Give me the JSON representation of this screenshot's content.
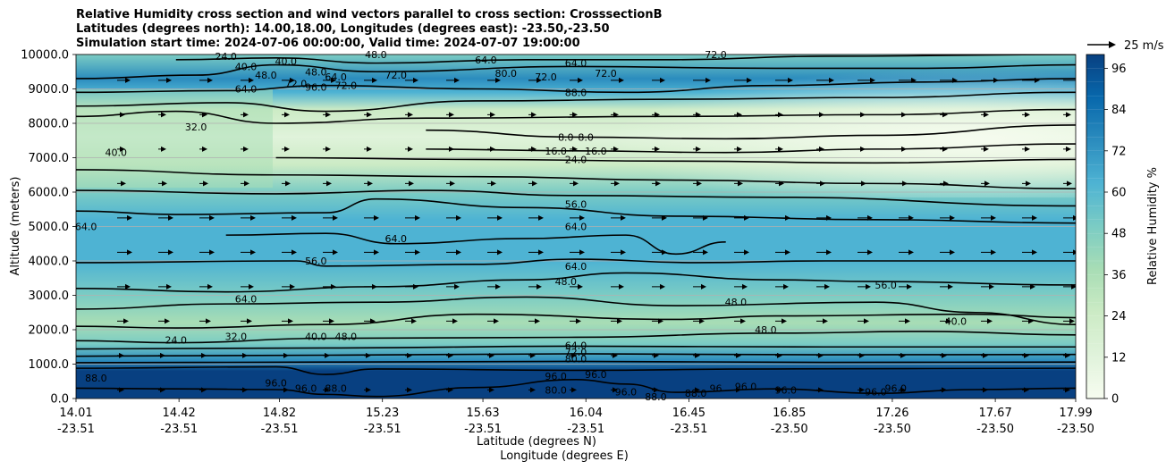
{
  "title_lines": [
    "Relative Humidity cross section and wind vectors parallel to cross section: CrosssectionB",
    "Latitudes (degrees north): 14.00,18.00, Longitudes (degrees east): -23.50,-23.50",
    "Simulation start time: 2024-07-06 00:00:00, Valid time: 2024-07-07 19:00:00"
  ],
  "colors": {
    "scale": [
      "#f7fcf0",
      "#e0f3db",
      "#ccebc5",
      "#a8ddb5",
      "#7bccc4",
      "#4eb3d3",
      "#2b8cbe",
      "#0868ac",
      "#084081"
    ],
    "contour": "#000000",
    "grid": "#b0b0b0"
  },
  "chart_data": {
    "type": "contour",
    "ylabel": "Altitude (meters)",
    "xlabel_lines": [
      "Latitude (degrees N)",
      "Longitude (degrees E)"
    ],
    "ylim": [
      0,
      10000
    ],
    "yticks": [
      "0.0",
      "1000.0",
      "2000.0",
      "3000.0",
      "4000.0",
      "5000.0",
      "6000.0",
      "7000.0",
      "8000.0",
      "9000.0",
      "10000.0"
    ],
    "x_ticks": [
      {
        "lat": "14.01",
        "lon": "-23.51"
      },
      {
        "lat": "14.42",
        "lon": "-23.51"
      },
      {
        "lat": "14.82",
        "lon": "-23.51"
      },
      {
        "lat": "15.23",
        "lon": "-23.51"
      },
      {
        "lat": "15.63",
        "lon": "-23.51"
      },
      {
        "lat": "16.04",
        "lon": "-23.51"
      },
      {
        "lat": "16.45",
        "lon": "-23.51"
      },
      {
        "lat": "16.85",
        "lon": "-23.50"
      },
      {
        "lat": "17.26",
        "lon": "-23.50"
      },
      {
        "lat": "17.67",
        "lon": "-23.50"
      },
      {
        "lat": "17.99",
        "lon": "-23.50"
      }
    ],
    "colorbar": {
      "label": "Relative Humidity %",
      "ticks": [
        "0",
        "12",
        "24",
        "36",
        "48",
        "60",
        "72",
        "84",
        "96"
      ],
      "range": [
        0,
        100
      ]
    },
    "quiver_key": "25 m/s",
    "grid": "horizontal",
    "contour_labels": [
      {
        "text": "24.0",
        "x": 0.15,
        "y": 9950
      },
      {
        "text": "40.0",
        "x": 0.17,
        "y": 9650
      },
      {
        "text": "40.0",
        "x": 0.21,
        "y": 9800
      },
      {
        "text": "48.0",
        "x": 0.19,
        "y": 9400
      },
      {
        "text": "64.0",
        "x": 0.17,
        "y": 9000
      },
      {
        "text": "48.0",
        "x": 0.24,
        "y": 9500
      },
      {
        "text": "72.0",
        "x": 0.22,
        "y": 9150
      },
      {
        "text": "96.0",
        "x": 0.24,
        "y": 9050
      },
      {
        "text": "64.0",
        "x": 0.26,
        "y": 9350
      },
      {
        "text": "72.0",
        "x": 0.27,
        "y": 9100
      },
      {
        "text": "72.0",
        "x": 0.32,
        "y": 9400
      },
      {
        "text": "48.0",
        "x": 0.3,
        "y": 10000
      },
      {
        "text": "64.0",
        "x": 0.41,
        "y": 9850
      },
      {
        "text": "80.0",
        "x": 0.43,
        "y": 9450
      },
      {
        "text": "72.0",
        "x": 0.47,
        "y": 9350
      },
      {
        "text": "64.0",
        "x": 0.5,
        "y": 9750
      },
      {
        "text": "72.0",
        "x": 0.53,
        "y": 9450
      },
      {
        "text": "88.0",
        "x": 0.5,
        "y": 8900
      },
      {
        "text": "72.0",
        "x": 0.64,
        "y": 10000
      },
      {
        "text": "32.0",
        "x": 0.12,
        "y": 7900
      },
      {
        "text": "40.0",
        "x": 0.04,
        "y": 7150
      },
      {
        "text": "8.0",
        "x": 0.49,
        "y": 7600
      },
      {
        "text": "8.0",
        "x": 0.51,
        "y": 7600
      },
      {
        "text": "16.0",
        "x": 0.48,
        "y": 7200
      },
      {
        "text": "16.0",
        "x": 0.52,
        "y": 7200
      },
      {
        "text": "24.0",
        "x": 0.5,
        "y": 6950
      },
      {
        "text": "56.0",
        "x": 0.5,
        "y": 5650
      },
      {
        "text": "64.0",
        "x": 0.01,
        "y": 5000
      },
      {
        "text": "64.0",
        "x": 0.32,
        "y": 4650
      },
      {
        "text": "64.0",
        "x": 0.5,
        "y": 5000
      },
      {
        "text": "56.0",
        "x": 0.24,
        "y": 4000
      },
      {
        "text": "64.0",
        "x": 0.5,
        "y": 3850
      },
      {
        "text": "48.0",
        "x": 0.49,
        "y": 3400
      },
      {
        "text": "64.0",
        "x": 0.17,
        "y": 2900
      },
      {
        "text": "48.0",
        "x": 0.66,
        "y": 2800
      },
      {
        "text": "56.0",
        "x": 0.81,
        "y": 3300
      },
      {
        "text": "48.0",
        "x": 0.69,
        "y": 2000
      },
      {
        "text": "40.0",
        "x": 0.88,
        "y": 2250
      },
      {
        "text": "24.0",
        "x": 0.1,
        "y": 1700
      },
      {
        "text": "32.0",
        "x": 0.16,
        "y": 1800
      },
      {
        "text": "40.0",
        "x": 0.24,
        "y": 1800
      },
      {
        "text": "48.0",
        "x": 0.27,
        "y": 1800
      },
      {
        "text": "64.0",
        "x": 0.5,
        "y": 1550
      },
      {
        "text": "72.0",
        "x": 0.5,
        "y": 1350
      },
      {
        "text": "80.0",
        "x": 0.5,
        "y": 1150
      },
      {
        "text": "88.0",
        "x": 0.02,
        "y": 600
      },
      {
        "text": "96.0",
        "x": 0.2,
        "y": 450
      },
      {
        "text": "96.0",
        "x": 0.23,
        "y": 300
      },
      {
        "text": "88.0",
        "x": 0.26,
        "y": 300
      },
      {
        "text": "96.0",
        "x": 0.48,
        "y": 650
      },
      {
        "text": "96.0",
        "x": 0.52,
        "y": 700
      },
      {
        "text": "80.0",
        "x": 0.48,
        "y": 250
      },
      {
        "text": "96.0",
        "x": 0.55,
        "y": 200
      },
      {
        "text": "88.0",
        "x": 0.58,
        "y": 50
      },
      {
        "text": "88.0",
        "x": 0.62,
        "y": 150
      },
      {
        "text": "96",
        "x": 0.64,
        "y": 300
      },
      {
        "text": "96.0",
        "x": 0.67,
        "y": 350
      },
      {
        "text": "96.0",
        "x": 0.71,
        "y": 250
      },
      {
        "text": "96.0",
        "x": 0.8,
        "y": 200
      },
      {
        "text": "96.0",
        "x": 0.82,
        "y": 300
      }
    ],
    "contour_lines": [
      {
        "level": 96,
        "points": [
          [
            0,
            300
          ],
          [
            0.1,
            280
          ],
          [
            0.2,
            260
          ],
          [
            0.25,
            120
          ],
          [
            0.3,
            60
          ],
          [
            0.4,
            320
          ],
          [
            0.5,
            550
          ],
          [
            0.55,
            420
          ],
          [
            0.6,
            180
          ],
          [
            0.7,
            280
          ],
          [
            0.8,
            150
          ],
          [
            0.9,
            260
          ],
          [
            1,
            300
          ]
        ]
      },
      {
        "level": 88,
        "points": [
          [
            0,
            880
          ],
          [
            0.2,
            920
          ],
          [
            0.25,
            700
          ],
          [
            0.3,
            860
          ],
          [
            0.5,
            820
          ],
          [
            0.7,
            860
          ],
          [
            1,
            880
          ]
        ]
      },
      {
        "level": 80,
        "points": [
          [
            0,
            1040
          ],
          [
            0.25,
            1060
          ],
          [
            0.5,
            1080
          ],
          [
            0.75,
            1050
          ],
          [
            1,
            1060
          ]
        ]
      },
      {
        "level": 72,
        "points": [
          [
            0,
            1230
          ],
          [
            0.25,
            1260
          ],
          [
            0.5,
            1300
          ],
          [
            0.75,
            1270
          ],
          [
            1,
            1280
          ]
        ]
      },
      {
        "level": 64,
        "points": [
          [
            0,
            1440
          ],
          [
            0.25,
            1470
          ],
          [
            0.5,
            1520
          ],
          [
            0.75,
            1500
          ],
          [
            1,
            1500
          ]
        ]
      },
      {
        "level": 56,
        "points": [
          [
            0,
            1680
          ],
          [
            0.1,
            1620
          ],
          [
            0.25,
            1750
          ],
          [
            0.5,
            1780
          ],
          [
            0.7,
            1900
          ],
          [
            0.85,
            1950
          ],
          [
            1,
            1850
          ]
        ]
      },
      {
        "level": 48,
        "points": [
          [
            0,
            2100
          ],
          [
            0.1,
            2050
          ],
          [
            0.25,
            2150
          ],
          [
            0.4,
            2450
          ],
          [
            0.6,
            2300
          ],
          [
            0.7,
            2400
          ],
          [
            0.9,
            2450
          ],
          [
            1,
            2350
          ]
        ]
      },
      {
        "level": 40,
        "points": [
          [
            0,
            2600
          ],
          [
            0.15,
            2750
          ],
          [
            0.3,
            2800
          ],
          [
            0.45,
            2950
          ],
          [
            0.6,
            2700
          ],
          [
            0.8,
            2800
          ],
          [
            0.9,
            2500
          ],
          [
            1,
            2150
          ]
        ]
      },
      {
        "level": 56,
        "points": [
          [
            0,
            3200
          ],
          [
            0.15,
            3100
          ],
          [
            0.3,
            3250
          ],
          [
            0.45,
            3450
          ],
          [
            0.55,
            3650
          ],
          [
            0.7,
            3450
          ],
          [
            0.8,
            3400
          ],
          [
            1,
            3300
          ]
        ]
      },
      {
        "level": 64,
        "points": [
          [
            0,
            3950
          ],
          [
            0.22,
            4000
          ],
          [
            0.25,
            3850
          ],
          [
            0.4,
            3900
          ],
          [
            0.5,
            4050
          ],
          [
            0.62,
            3950
          ],
          [
            0.75,
            4000
          ],
          [
            1,
            4000
          ]
        ]
      },
      {
        "level": 64,
        "points": [
          [
            0.15,
            4750
          ],
          [
            0.25,
            4800
          ],
          [
            0.32,
            4500
          ],
          [
            0.45,
            4650
          ],
          [
            0.55,
            4750
          ],
          [
            0.6,
            4200
          ],
          [
            0.65,
            4550
          ]
        ]
      },
      {
        "level": 56,
        "points": [
          [
            0,
            5450
          ],
          [
            0.1,
            5350
          ],
          [
            0.25,
            5400
          ],
          [
            0.3,
            5800
          ],
          [
            0.45,
            5550
          ],
          [
            0.6,
            5300
          ],
          [
            0.8,
            5200
          ],
          [
            1,
            5100
          ]
        ]
      },
      {
        "level": 48,
        "points": [
          [
            0,
            6050
          ],
          [
            0.2,
            5950
          ],
          [
            0.35,
            6050
          ],
          [
            0.5,
            5900
          ],
          [
            0.7,
            5850
          ],
          [
            1,
            5600
          ]
        ]
      },
      {
        "level": 40,
        "points": [
          [
            0,
            6650
          ],
          [
            0.2,
            6500
          ],
          [
            0.4,
            6450
          ],
          [
            0.6,
            6350
          ],
          [
            0.8,
            6250
          ],
          [
            1,
            6100
          ]
        ]
      },
      {
        "level": 24,
        "points": [
          [
            0.2,
            7000
          ],
          [
            0.4,
            6950
          ],
          [
            0.6,
            6900
          ],
          [
            0.8,
            6850
          ],
          [
            1,
            6950
          ]
        ]
      },
      {
        "level": 16,
        "points": [
          [
            0.35,
            7250
          ],
          [
            0.5,
            7200
          ],
          [
            0.65,
            7150
          ],
          [
            0.8,
            7250
          ],
          [
            1,
            7400
          ]
        ]
      },
      {
        "level": 8,
        "points": [
          [
            0.35,
            7800
          ],
          [
            0.5,
            7600
          ],
          [
            0.65,
            7550
          ],
          [
            0.8,
            7650
          ],
          [
            1,
            7950
          ]
        ]
      },
      {
        "level": 32,
        "points": [
          [
            0,
            8200
          ],
          [
            0.1,
            8350
          ],
          [
            0.2,
            8000
          ],
          [
            0.35,
            8150
          ],
          [
            0.6,
            8200
          ],
          [
            0.8,
            8250
          ],
          [
            1,
            8400
          ]
        ]
      },
      {
        "level": 48,
        "points": [
          [
            0,
            8500
          ],
          [
            0.15,
            8600
          ],
          [
            0.25,
            8350
          ],
          [
            0.4,
            8650
          ],
          [
            0.6,
            8700
          ],
          [
            0.8,
            8750
          ],
          [
            1,
            8900
          ]
        ]
      },
      {
        "level": 64,
        "points": [
          [
            0,
            8900
          ],
          [
            0.15,
            8950
          ],
          [
            0.25,
            9100
          ],
          [
            0.4,
            9000
          ],
          [
            0.55,
            8900
          ],
          [
            0.7,
            9100
          ],
          [
            0.85,
            9200
          ],
          [
            1,
            9300
          ]
        ]
      },
      {
        "level": 72,
        "points": [
          [
            0,
            9300
          ],
          [
            0.12,
            9400
          ],
          [
            0.2,
            9700
          ],
          [
            0.3,
            9500
          ],
          [
            0.5,
            9650
          ],
          [
            0.7,
            9600
          ],
          [
            0.85,
            9600
          ],
          [
            1,
            9700
          ]
        ]
      },
      {
        "level": 40,
        "points": [
          [
            0.1,
            9850
          ],
          [
            0.2,
            9900
          ],
          [
            0.3,
            9750
          ],
          [
            0.45,
            9850
          ],
          [
            0.6,
            9850
          ],
          [
            0.75,
            9950
          ],
          [
            1,
            10000
          ]
        ]
      }
    ]
  }
}
